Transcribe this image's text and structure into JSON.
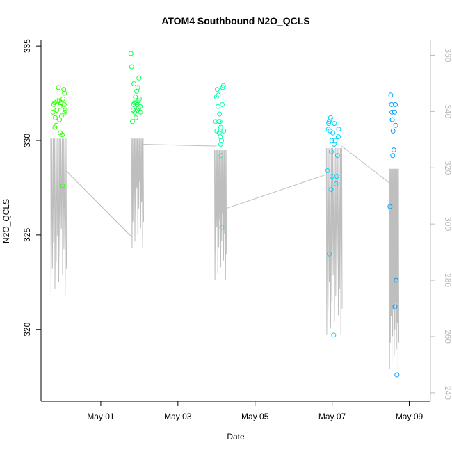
{
  "chart_data": {
    "type": "scatter",
    "title": "ATOM4 Southbound N2O_QCLS",
    "xlabel": "Date",
    "ylabel": "N2O_QCLS",
    "xlim": [
      -1.55,
      8.55
    ],
    "ylim": [
      316.2,
      335.3
    ],
    "x_ticks": [
      {
        "value": 0,
        "label": "May 01"
      },
      {
        "value": 2,
        "label": "May 03"
      },
      {
        "value": 4,
        "label": "May 05"
      },
      {
        "value": 6,
        "label": "May 07"
      },
      {
        "value": 8,
        "label": "May 09"
      }
    ],
    "y_ticks": [
      320,
      325,
      330,
      335
    ],
    "y2_ticks": [
      240,
      260,
      280,
      300,
      320,
      340,
      360
    ],
    "y2lim": [
      237.0,
      365.3
    ],
    "grid": false,
    "colors": {
      "line": "#bebebe",
      "axis": "#000000",
      "right_axis": "#bbbbbb",
      "point_gradient": [
        "#33ff00",
        "#00ff66",
        "#00ffff",
        "#0099ff"
      ]
    },
    "series": [
      {
        "points": [
          [
            -1.24,
            331.5
          ],
          [
            -1.22,
            331.9
          ],
          [
            -1.2,
            332.0
          ],
          [
            -1.18,
            331.2
          ],
          [
            -1.16,
            330.8
          ],
          [
            -1.14,
            331.6
          ],
          [
            -1.12,
            332.1
          ],
          [
            -1.1,
            332.8
          ],
          [
            -1.08,
            332.1
          ],
          [
            -1.06,
            331.8
          ],
          [
            -1.05,
            330.4
          ],
          [
            -1.04,
            332.0
          ],
          [
            -1.02,
            331.3
          ],
          [
            -1.0,
            330.3
          ],
          [
            -0.99,
            327.6
          ],
          [
            -0.98,
            332.2
          ],
          [
            -0.96,
            332.7
          ],
          [
            -0.95,
            331.9
          ],
          [
            -0.94,
            332.5
          ],
          [
            -0.93,
            331.5
          ],
          [
            -0.92,
            331.6
          ],
          [
            -1.19,
            330.7
          ],
          [
            -1.07,
            331.1
          ],
          [
            0.78,
            334.6
          ],
          [
            0.8,
            333.9
          ],
          [
            0.82,
            331.0
          ],
          [
            0.84,
            331.6
          ],
          [
            0.85,
            331.9
          ],
          [
            0.86,
            333.0
          ],
          [
            0.87,
            332.0
          ],
          [
            0.88,
            331.5
          ],
          [
            0.9,
            332.3
          ],
          [
            0.91,
            331.2
          ],
          [
            0.92,
            332.0
          ],
          [
            0.93,
            332.6
          ],
          [
            0.94,
            331.9
          ],
          [
            0.95,
            331.6
          ],
          [
            0.96,
            332.8
          ],
          [
            0.97,
            332.1
          ],
          [
            0.98,
            331.7
          ],
          [
            0.99,
            333.3
          ],
          [
            1.0,
            332.2
          ],
          [
            1.02,
            331.8
          ],
          [
            1.03,
            331.5
          ],
          [
            2.98,
            331.0
          ],
          [
            3.0,
            332.3
          ],
          [
            3.01,
            330.5
          ],
          [
            3.02,
            332.7
          ],
          [
            3.04,
            331.8
          ],
          [
            3.05,
            332.4
          ],
          [
            3.06,
            331.0
          ],
          [
            3.07,
            330.4
          ],
          [
            3.08,
            331.4
          ],
          [
            3.09,
            331.0
          ],
          [
            3.1,
            330.2
          ],
          [
            3.11,
            329.8
          ],
          [
            3.12,
            329.2
          ],
          [
            3.13,
            330.0
          ],
          [
            3.14,
            325.4
          ],
          [
            3.15,
            331.9
          ],
          [
            3.16,
            332.8
          ],
          [
            3.18,
            332.9
          ],
          [
            3.19,
            330.5
          ],
          [
            3.11,
            330.7
          ],
          [
            5.88,
            328.4
          ],
          [
            5.9,
            330.6
          ],
          [
            5.91,
            330.9
          ],
          [
            5.92,
            331.0
          ],
          [
            5.93,
            324.0
          ],
          [
            5.94,
            331.1
          ],
          [
            5.95,
            330.5
          ],
          [
            5.96,
            331.2
          ],
          [
            5.97,
            327.4
          ],
          [
            5.98,
            329.4
          ],
          [
            5.99,
            330.0
          ],
          [
            6.0,
            328.1
          ],
          [
            6.02,
            330.4
          ],
          [
            6.04,
            319.7
          ],
          [
            6.05,
            329.8
          ],
          [
            6.06,
            330.9
          ],
          [
            6.08,
            330.0
          ],
          [
            6.1,
            327.7
          ],
          [
            6.12,
            328.1
          ],
          [
            6.14,
            329.2
          ],
          [
            6.16,
            330.2
          ],
          [
            6.17,
            330.6
          ],
          [
            7.5,
            326.5
          ],
          [
            7.52,
            332.4
          ],
          [
            7.54,
            331.9
          ],
          [
            7.55,
            331.5
          ],
          [
            7.56,
            331.1
          ],
          [
            7.57,
            329.2
          ],
          [
            7.58,
            330.5
          ],
          [
            7.6,
            329.5
          ],
          [
            7.62,
            331.5
          ],
          [
            7.64,
            331.9
          ],
          [
            7.65,
            330.8
          ],
          [
            7.66,
            322.6
          ],
          [
            7.63,
            321.2
          ],
          [
            7.68,
            317.6
          ]
        ]
      }
    ]
  }
}
